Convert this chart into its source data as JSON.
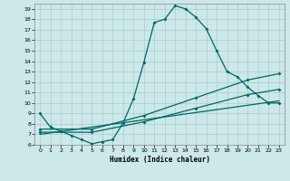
{
  "title": "",
  "xlabel": "Humidex (Indice chaleur)",
  "background_color": "#cce8e8",
  "grid_color": "#aacccc",
  "line_color": "#006666",
  "xlim": [
    -0.5,
    23.5
  ],
  "ylim": [
    6,
    19.5
  ],
  "xticks": [
    0,
    1,
    2,
    3,
    4,
    5,
    6,
    7,
    8,
    9,
    10,
    11,
    12,
    13,
    14,
    15,
    16,
    17,
    18,
    19,
    20,
    21,
    22,
    23
  ],
  "yticks": [
    6,
    7,
    8,
    9,
    10,
    11,
    12,
    13,
    14,
    15,
    16,
    17,
    18,
    19
  ],
  "line1_x": [
    0,
    1,
    2,
    3,
    4,
    5,
    6,
    7,
    8,
    9,
    10,
    11,
    12,
    13,
    14,
    15,
    16,
    17,
    18,
    19,
    20,
    21,
    22,
    23
  ],
  "line1_y": [
    9.0,
    7.7,
    7.3,
    6.9,
    6.5,
    6.1,
    6.3,
    6.5,
    8.1,
    10.4,
    13.9,
    17.7,
    18.0,
    19.3,
    19.0,
    18.2,
    17.1,
    15.0,
    13.0,
    12.5,
    11.5,
    10.7,
    10.0,
    10.0
  ],
  "line2_x": [
    0,
    5,
    10,
    15,
    20,
    23
  ],
  "line2_y": [
    7.5,
    7.5,
    8.8,
    10.5,
    12.2,
    12.8
  ],
  "line3_x": [
    0,
    5,
    10,
    15,
    20,
    23
  ],
  "line3_y": [
    7.2,
    7.2,
    8.2,
    9.5,
    10.8,
    11.3
  ],
  "line4_x": [
    0,
    23
  ],
  "line4_y": [
    7.0,
    10.2
  ]
}
